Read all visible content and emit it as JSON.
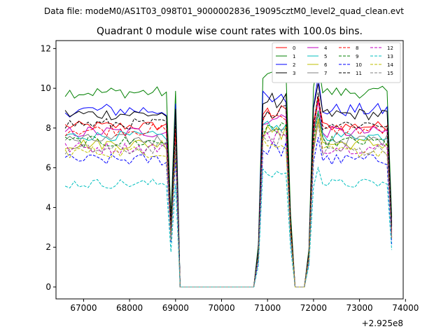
{
  "chart_data": {
    "type": "line",
    "suptitle": "Data file: modeM0/AS1T03_098T01_9000002836_19095cztM0_level2_quad_clean.evt",
    "title": "Quadrant 0 module wise count rates with 100.0s bins.",
    "xlabel": "",
    "ylabel": "",
    "offset_text": "+2.925e8",
    "xlim": [
      66400,
      73950
    ],
    "ylim": [
      -0.6,
      12.4
    ],
    "x_ticks": [
      67000,
      68000,
      69000,
      70000,
      71000,
      72000,
      73000,
      74000
    ],
    "x_tick_labels": [
      "67000",
      "68000",
      "69000",
      "70000",
      "71000",
      "72000",
      "73000",
      "74000"
    ],
    "y_ticks": [
      0,
      2,
      4,
      6,
      8,
      10,
      12
    ],
    "y_tick_labels": [
      "0",
      "2",
      "4",
      "6",
      "8",
      "10",
      "12"
    ],
    "legend_position": "top-right",
    "segments": [
      {
        "start": 66600,
        "end": 69000
      },
      {
        "start": 70800,
        "end": 71500
      },
      {
        "start": 71900,
        "end": 73700
      }
    ],
    "series": [
      {
        "name": "0",
        "color": "#ff0000",
        "dashed": false,
        "base": 8.1,
        "variation": 0.25
      },
      {
        "name": "1",
        "color": "#008000",
        "dashed": false,
        "base": 9.8,
        "variation": 0.3
      },
      {
        "name": "2",
        "color": "#0000ff",
        "dashed": false,
        "base": 8.9,
        "variation": 0.35
      },
      {
        "name": "3",
        "color": "#000000",
        "dashed": false,
        "base": 8.7,
        "variation": 0.3
      },
      {
        "name": "4",
        "color": "#c000c0",
        "dashed": false,
        "base": 7.8,
        "variation": 0.3
      },
      {
        "name": "5",
        "color": "#00bfbf",
        "dashed": false,
        "base": 7.6,
        "variation": 0.25
      },
      {
        "name": "6",
        "color": "#bfbf00",
        "dashed": false,
        "base": 7.2,
        "variation": 0.3
      },
      {
        "name": "7",
        "color": "#808080",
        "dashed": false,
        "base": 7.4,
        "variation": 0.3
      },
      {
        "name": "8",
        "color": "#ff0000",
        "dashed": true,
        "base": 7.9,
        "variation": 0.3
      },
      {
        "name": "9",
        "color": "#008000",
        "dashed": true,
        "base": 7.3,
        "variation": 0.3
      },
      {
        "name": "10",
        "color": "#0000ff",
        "dashed": true,
        "base": 6.4,
        "variation": 0.3
      },
      {
        "name": "11",
        "color": "#000000",
        "dashed": true,
        "base": 8.2,
        "variation": 0.3
      },
      {
        "name": "12",
        "color": "#c000c0",
        "dashed": true,
        "base": 7.0,
        "variation": 0.3
      },
      {
        "name": "13",
        "color": "#00bfbf",
        "dashed": true,
        "base": 5.2,
        "variation": 0.25
      },
      {
        "name": "14",
        "color": "#bfbf00",
        "dashed": true,
        "base": 6.8,
        "variation": 0.3
      },
      {
        "name": "15",
        "color": "#808080",
        "dashed": true,
        "base": 6.9,
        "variation": 0.3
      }
    ]
  }
}
